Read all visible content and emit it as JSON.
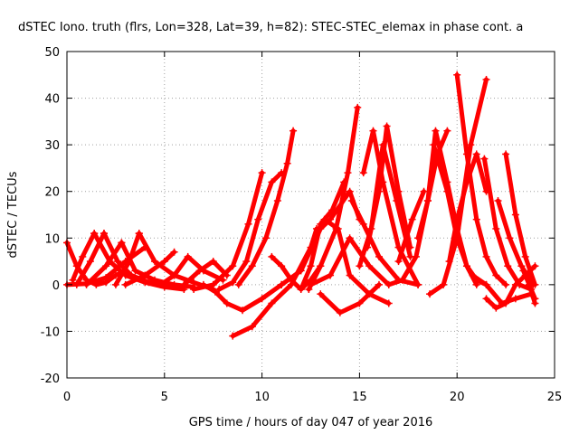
{
  "chart_data": {
    "type": "line",
    "title": "dSTEC Iono. truth (flrs, Lon=328, Lat=39, h=82): STEC-STEC_elemax in phase cont. a",
    "xlabel": "GPS time / hours of day 047 of year 2016",
    "ylabel": "dSTEC  / TECUs",
    "xlim": [
      0,
      25
    ],
    "ylim": [
      -20,
      50
    ],
    "xticks": [
      0,
      5,
      10,
      15,
      20,
      25
    ],
    "yticks": [
      -20,
      -10,
      0,
      10,
      20,
      30,
      40,
      50
    ],
    "grid": true,
    "series_color": "#ff0000",
    "series": [
      {
        "x": [
          0.0,
          0.5,
          1.0,
          1.5,
          2.0,
          2.5,
          3.0
        ],
        "y": [
          9,
          4,
          1,
          0,
          0.5,
          2,
          3
        ]
      },
      {
        "x": [
          0.0,
          1.0,
          2.0,
          3.0,
          4.0
        ],
        "y": [
          0,
          0.2,
          1.5,
          5,
          8
        ]
      },
      {
        "x": [
          0.3,
          0.8,
          1.4
        ],
        "y": [
          1,
          6,
          11
        ]
      },
      {
        "x": [
          1.4,
          2.2,
          3.0,
          4.0,
          5.0,
          6.0
        ],
        "y": [
          11,
          5,
          2,
          0.5,
          -0.5,
          -1
        ]
      },
      {
        "x": [
          0.5,
          1.2,
          1.9
        ],
        "y": [
          0,
          5,
          11
        ]
      },
      {
        "x": [
          1.9,
          2.6,
          3.3,
          4.2,
          5.2
        ],
        "y": [
          11,
          5,
          2,
          0.5,
          0
        ]
      },
      {
        "x": [
          1.0,
          2.0,
          2.8
        ],
        "y": [
          0,
          4,
          9
        ]
      },
      {
        "x": [
          2.8,
          3.5,
          4.5,
          5.5,
          6.5
        ],
        "y": [
          9,
          3,
          1,
          0,
          -0.5
        ]
      },
      {
        "x": [
          2.5,
          3.2,
          3.7
        ],
        "y": [
          0,
          5,
          11
        ]
      },
      {
        "x": [
          3.7,
          4.5,
          5.5,
          6.5,
          7.5
        ],
        "y": [
          11,
          5,
          2,
          0.5,
          -1
        ]
      },
      {
        "x": [
          3.0,
          4.0,
          5.0,
          5.5
        ],
        "y": [
          0,
          2,
          5,
          7
        ]
      },
      {
        "x": [
          4.8,
          5.5,
          6.2,
          7.0,
          8.0
        ],
        "y": [
          0,
          2,
          6,
          3,
          1
        ]
      },
      {
        "x": [
          6.0,
          6.8,
          7.5,
          8.2
        ],
        "y": [
          0,
          3,
          5,
          2
        ]
      },
      {
        "x": [
          7.0,
          7.6,
          8.2,
          9.0,
          10.0,
          11.0
        ],
        "y": [
          0,
          -1.5,
          -4,
          -5.5,
          -3,
          0
        ]
      },
      {
        "x": [
          6.5,
          7.5,
          8.5,
          9.3,
          10.0
        ],
        "y": [
          -1,
          0,
          4,
          13,
          24
        ]
      },
      {
        "x": [
          7.8,
          8.5,
          9.2,
          9.8,
          10.5,
          11.0
        ],
        "y": [
          -1,
          0.5,
          5,
          14,
          22,
          24
        ]
      },
      {
        "x": [
          8.8,
          9.5,
          10.2,
          10.8,
          11.3,
          11.6
        ],
        "y": [
          0,
          4,
          10,
          18,
          26,
          33
        ]
      },
      {
        "x": [
          8.5,
          9.5,
          10.5,
          11.5,
          12.5,
          12.8
        ],
        "y": [
          -11,
          -9,
          -4,
          0,
          8,
          12
        ]
      },
      {
        "x": [
          10.5,
          11.0,
          11.5,
          12.0,
          12.5,
          13.0
        ],
        "y": [
          6,
          4,
          1,
          -1,
          1,
          4
        ]
      },
      {
        "x": [
          11.0,
          12.0,
          13.0,
          13.5,
          14.5,
          15.0
        ],
        "y": [
          0,
          3,
          12,
          14,
          20,
          14
        ]
      },
      {
        "x": [
          12.0,
          12.5,
          13.0,
          13.6,
          14.2
        ],
        "y": [
          -1,
          4,
          13,
          16,
          22
        ]
      },
      {
        "x": [
          12.4,
          13.0,
          13.8,
          14.4,
          14.9
        ],
        "y": [
          -1,
          4,
          12,
          24,
          38
        ]
      },
      {
        "x": [
          12.5,
          13.5,
          14.5,
          15.5,
          16.5
        ],
        "y": [
          0,
          2,
          10,
          4,
          0
        ]
      },
      {
        "x": [
          13.0,
          14.0,
          15.0,
          16.0
        ],
        "y": [
          -2,
          -6,
          -4,
          0
        ]
      },
      {
        "x": [
          13.2,
          13.9,
          14.5,
          15.5,
          16.5
        ],
        "y": [
          14,
          12,
          2,
          -2,
          -4
        ]
      },
      {
        "x": [
          14.6,
          15.2,
          16.0,
          17.0,
          18.0
        ],
        "y": [
          18,
          13,
          6,
          1,
          0
        ]
      },
      {
        "x": [
          15.0,
          15.6,
          16.2,
          16.9,
          17.6
        ],
        "y": [
          4,
          12,
          30,
          18,
          6
        ]
      },
      {
        "x": [
          15.4,
          16.0,
          16.4,
          17.0,
          17.6
        ],
        "y": [
          8,
          20,
          34,
          20,
          8
        ]
      },
      {
        "x": [
          15.2,
          15.7,
          16.2,
          17.0,
          18.0
        ],
        "y": [
          24,
          33,
          22,
          8,
          0
        ]
      },
      {
        "x": [
          16.5,
          17.2,
          17.9,
          18.5,
          19.0,
          19.5
        ],
        "y": [
          0,
          1,
          6,
          18,
          28,
          33
        ]
      },
      {
        "x": [
          17.0,
          17.7,
          18.3
        ],
        "y": [
          5,
          14,
          20
        ]
      },
      {
        "x": [
          18.0,
          18.5,
          18.9,
          19.5,
          20.0,
          20.5,
          21.0
        ],
        "y": [
          10,
          18,
          33,
          22,
          12,
          4,
          0
        ]
      },
      {
        "x": [
          18.6,
          19.3,
          20.0,
          20.7,
          21.5
        ],
        "y": [
          -2,
          0,
          10,
          30,
          44
        ]
      },
      {
        "x": [
          18.8,
          19.5,
          20.0,
          20.5,
          21.0,
          21.5
        ],
        "y": [
          30,
          20,
          10,
          4,
          1,
          0
        ]
      },
      {
        "x": [
          19.6,
          20.0,
          20.5,
          21.0,
          21.5
        ],
        "y": [
          5,
          14,
          22,
          28,
          20
        ]
      },
      {
        "x": [
          20.0,
          20.5,
          21.0,
          21.5,
          22.0,
          22.5
        ],
        "y": [
          45,
          28,
          14,
          6,
          2,
          0
        ]
      },
      {
        "x": [
          21.4,
          22.0,
          22.6,
          23.2,
          23.8,
          24.0
        ],
        "y": [
          27,
          12,
          4,
          0,
          -1,
          -3
        ]
      },
      {
        "x": [
          22.1,
          22.7,
          23.3,
          23.9
        ],
        "y": [
          18,
          10,
          4,
          0
        ]
      },
      {
        "x": [
          22.5,
          23.0,
          23.5,
          24.0
        ],
        "y": [
          28,
          15,
          6,
          0
        ]
      },
      {
        "x": [
          21.5,
          22.0,
          22.5,
          23.0,
          23.5,
          24.0
        ],
        "y": [
          -3,
          -5,
          -4,
          0,
          2,
          4
        ]
      },
      {
        "x": [
          20.8,
          21.5,
          22.3,
          23.0,
          23.8
        ],
        "y": [
          2,
          0,
          -4,
          -3,
          -2
        ]
      },
      {
        "x": [
          23.4,
          23.7,
          24.0
        ],
        "y": [
          3,
          0,
          -4
        ]
      }
    ]
  }
}
